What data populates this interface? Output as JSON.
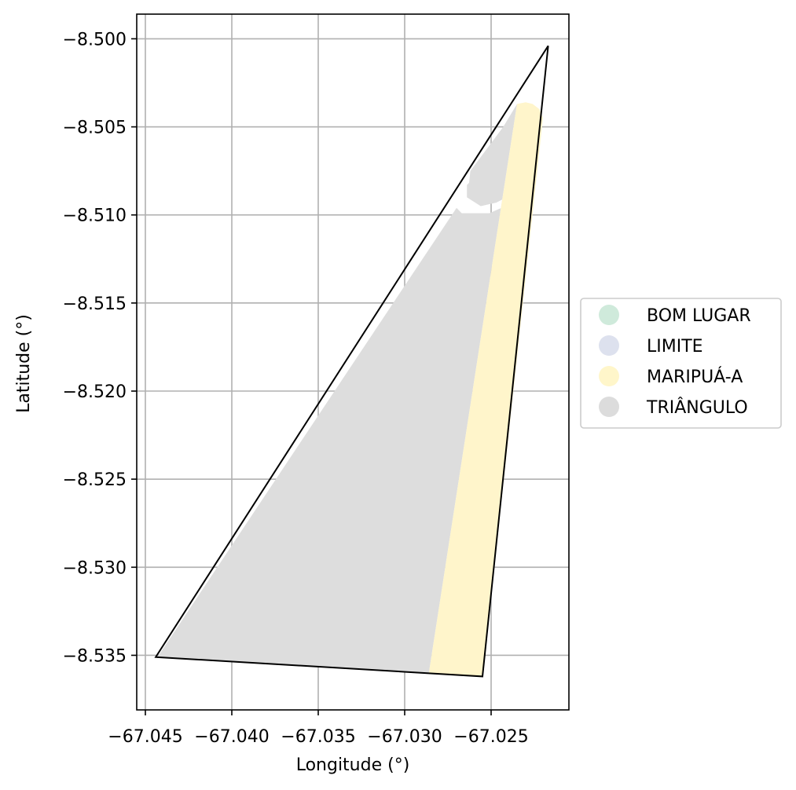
{
  "chart_data": {
    "type": "map",
    "xlabel": "Longitude (°)",
    "ylabel": "Latitude (°)",
    "xlim": [
      -67.0455,
      -67.0205
    ],
    "ylim": [
      -8.5381,
      -8.4986
    ],
    "grid": true,
    "x_ticks": [
      -67.045,
      -67.04,
      -67.035,
      -67.03,
      -67.025
    ],
    "x_tick_labels": [
      "−67.045",
      "−67.040",
      "−67.035",
      "−67.030",
      "−67.025"
    ],
    "y_ticks": [
      -8.5,
      -8.505,
      -8.51,
      -8.515,
      -8.52,
      -8.525,
      -8.53,
      -8.535
    ],
    "y_tick_labels": [
      "−8.500",
      "−8.505",
      "−8.510",
      "−8.515",
      "−8.520",
      "−8.525",
      "−8.530",
      "−8.535"
    ],
    "legend": {
      "placement": "center-right outside",
      "entries": [
        {
          "label": "BOM LUGAR",
          "color": "#cfeadb"
        },
        {
          "label": "LIMITE",
          "color": "#dde1ee"
        },
        {
          "label": "MARIPUÁ-A",
          "color": "#fff6ca"
        },
        {
          "label": "TRIÂNGULO",
          "color": "#dcdcdc"
        }
      ]
    },
    "regions": [
      {
        "name": "TRIÂNGULO",
        "color": "#dddddd",
        "polygon": [
          [
            -67.0443,
            -8.5351
          ],
          [
            -67.0286,
            -8.536
          ],
          [
            -67.0235,
            -8.5037
          ],
          [
            -67.0243,
            -8.505
          ],
          [
            -67.0262,
            -8.5075
          ],
          [
            -67.0263,
            -8.5084
          ],
          [
            -67.0262,
            -8.5091
          ],
          [
            -67.0257,
            -8.5094
          ],
          [
            -67.0251,
            -8.5092
          ],
          [
            -67.0247,
            -8.5085
          ],
          [
            -67.0251,
            -8.5077
          ],
          [
            -67.0259,
            -8.5078
          ],
          [
            -67.0264,
            -8.5083
          ],
          [
            -67.0264,
            -8.509
          ],
          [
            -67.0256,
            -8.5095
          ],
          [
            -67.0247,
            -8.5093
          ],
          [
            -67.0243,
            -8.5091
          ],
          [
            -67.0244,
            -8.5096
          ],
          [
            -67.0251,
            -8.5099
          ],
          [
            -67.0267,
            -8.5099
          ],
          [
            -67.027,
            -8.5096
          ]
        ]
      },
      {
        "name": "MARIPUÁ-A",
        "color": "#fff5cb",
        "polygon": [
          [
            -67.0286,
            -8.536
          ],
          [
            -67.0255,
            -8.5362
          ],
          [
            -67.022,
            -8.5045
          ],
          [
            -67.0222,
            -8.504
          ],
          [
            -67.0226,
            -8.5037
          ],
          [
            -67.023,
            -8.5036
          ],
          [
            -67.0235,
            -8.5037
          ]
        ]
      }
    ],
    "boundary": {
      "name": "LIMITE",
      "polygon": [
        [
          -67.0444,
          -8.5351
        ],
        [
          -67.0255,
          -8.5362
        ],
        [
          -67.0217,
          -8.5004
        ]
      ]
    }
  }
}
